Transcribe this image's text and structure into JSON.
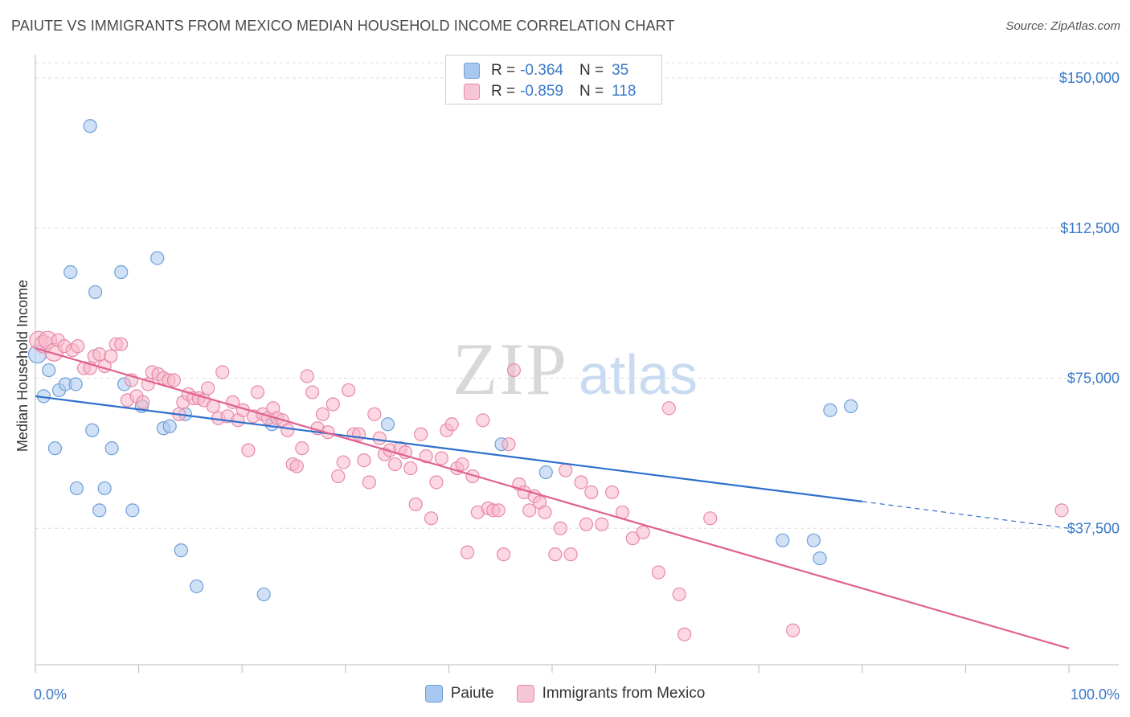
{
  "title": "PAIUTE VS IMMIGRANTS FROM MEXICO MEDIAN HOUSEHOLD INCOME CORRELATION CHART",
  "source": "Source: ZipAtlas.com",
  "watermark": {
    "zip": "ZIP",
    "atlas": "atlas"
  },
  "legend": {
    "rows": [
      {
        "r_label": "R =",
        "r_value": "-0.364",
        "n_label": "N =",
        "n_value": "35"
      },
      {
        "r_label": "R =",
        "r_value": "-0.859",
        "n_label": "N =",
        "n_value": "118"
      }
    ]
  },
  "colors": {
    "paiute_fill": "#a9c8f0",
    "paiute_stroke": "#6f9fd8",
    "paiute_line": "#2f6fcc",
    "mexico_fill": "#f7b8cb",
    "mexico_stroke": "#e889a8",
    "mexico_line": "#e0628e",
    "axis_label": "#3a78c8",
    "grid": "#dddddd"
  },
  "chart_data": {
    "type": "scatter",
    "ylabel": "Median Household Income",
    "xlim": [
      0,
      100
    ],
    "ylim": [
      0,
      155000
    ],
    "x_tick_labels": [
      "0.0%",
      "100.0%"
    ],
    "y_ticks": [
      {
        "value": 37500,
        "label": "$37,500"
      },
      {
        "value": 75000,
        "label": "$75,000"
      },
      {
        "value": 112500,
        "label": "$112,500"
      },
      {
        "value": 150000,
        "label": "$150,000"
      }
    ],
    "grid": true,
    "series": [
      {
        "name": "Paiute",
        "trend": {
          "x0": 0,
          "y0": 70500,
          "x1": 80,
          "y1": 44200,
          "dash_to_x": 100,
          "dash_to_y": 37500
        },
        "points": [
          [
            0.2,
            81000
          ],
          [
            0.8,
            70500
          ],
          [
            1.3,
            77000
          ],
          [
            1.9,
            57500
          ],
          [
            2.3,
            72000
          ],
          [
            2.9,
            73500
          ],
          [
            3.9,
            73500
          ],
          [
            3.4,
            101500
          ],
          [
            4.0,
            47500
          ],
          [
            5.3,
            138000
          ],
          [
            5.5,
            62000
          ],
          [
            5.8,
            96500
          ],
          [
            6.2,
            42000
          ],
          [
            6.7,
            47500
          ],
          [
            7.4,
            57500
          ],
          [
            8.3,
            101500
          ],
          [
            8.6,
            73500
          ],
          [
            9.4,
            42000
          ],
          [
            10.3,
            68000
          ],
          [
            11.8,
            105000
          ],
          [
            12.4,
            62500
          ],
          [
            13.0,
            63000
          ],
          [
            14.1,
            32000
          ],
          [
            14.5,
            66000
          ],
          [
            15.6,
            23000
          ],
          [
            22.1,
            21000
          ],
          [
            22.9,
            63500
          ],
          [
            34.1,
            63500
          ],
          [
            45.1,
            58500
          ],
          [
            49.4,
            51500
          ],
          [
            72.3,
            34500
          ],
          [
            75.3,
            34500
          ],
          [
            75.9,
            30000
          ],
          [
            76.9,
            67000
          ],
          [
            78.9,
            68000
          ]
        ]
      },
      {
        "name": "Immigrants from Mexico",
        "trend": {
          "x0": 0,
          "y0": 82500,
          "x1": 100,
          "y1": 7500
        },
        "points": [
          [
            0.3,
            84500
          ],
          [
            0.8,
            83500
          ],
          [
            1.2,
            84500
          ],
          [
            1.8,
            81500
          ],
          [
            2.2,
            84500
          ],
          [
            2.8,
            83000
          ],
          [
            3.6,
            82000
          ],
          [
            4.1,
            83000
          ],
          [
            4.7,
            77500
          ],
          [
            5.3,
            77500
          ],
          [
            5.7,
            80500
          ],
          [
            6.2,
            81000
          ],
          [
            6.7,
            78000
          ],
          [
            7.3,
            80500
          ],
          [
            7.8,
            83500
          ],
          [
            8.3,
            83500
          ],
          [
            8.9,
            69500
          ],
          [
            9.3,
            74500
          ],
          [
            9.8,
            70500
          ],
          [
            10.4,
            69000
          ],
          [
            10.9,
            73500
          ],
          [
            11.3,
            76500
          ],
          [
            11.9,
            76000
          ],
          [
            12.4,
            75000
          ],
          [
            12.9,
            74500
          ],
          [
            13.4,
            74500
          ],
          [
            13.9,
            66000
          ],
          [
            14.3,
            69000
          ],
          [
            14.8,
            71000
          ],
          [
            15.3,
            70000
          ],
          [
            15.8,
            70000
          ],
          [
            16.3,
            69500
          ],
          [
            16.7,
            72500
          ],
          [
            17.2,
            68000
          ],
          [
            17.7,
            65000
          ],
          [
            18.1,
            76500
          ],
          [
            18.6,
            65500
          ],
          [
            19.1,
            69000
          ],
          [
            19.6,
            64500
          ],
          [
            20.1,
            67000
          ],
          [
            20.6,
            57000
          ],
          [
            21.1,
            65500
          ],
          [
            21.5,
            71500
          ],
          [
            22.0,
            66000
          ],
          [
            22.5,
            65000
          ],
          [
            23.0,
            67500
          ],
          [
            23.4,
            65000
          ],
          [
            23.9,
            64500
          ],
          [
            24.4,
            62000
          ],
          [
            24.9,
            53500
          ],
          [
            25.3,
            53000
          ],
          [
            25.8,
            57500
          ],
          [
            26.3,
            75500
          ],
          [
            26.8,
            71500
          ],
          [
            27.3,
            62500
          ],
          [
            27.8,
            66000
          ],
          [
            28.3,
            61500
          ],
          [
            28.8,
            68500
          ],
          [
            29.3,
            50500
          ],
          [
            29.8,
            54000
          ],
          [
            30.3,
            72000
          ],
          [
            30.8,
            61000
          ],
          [
            31.3,
            61000
          ],
          [
            31.8,
            54500
          ],
          [
            32.3,
            49000
          ],
          [
            32.8,
            66000
          ],
          [
            33.3,
            60000
          ],
          [
            33.8,
            56000
          ],
          [
            34.3,
            57000
          ],
          [
            34.8,
            53500
          ],
          [
            35.3,
            57500
          ],
          [
            35.8,
            56500
          ],
          [
            36.3,
            52500
          ],
          [
            36.8,
            43500
          ],
          [
            37.3,
            61000
          ],
          [
            37.8,
            55500
          ],
          [
            38.3,
            40000
          ],
          [
            38.8,
            49000
          ],
          [
            39.3,
            55000
          ],
          [
            39.8,
            62000
          ],
          [
            40.3,
            63500
          ],
          [
            40.8,
            52500
          ],
          [
            41.3,
            53500
          ],
          [
            41.8,
            31500
          ],
          [
            42.3,
            50500
          ],
          [
            42.8,
            41500
          ],
          [
            43.3,
            64500
          ],
          [
            43.8,
            42500
          ],
          [
            44.3,
            42000
          ],
          [
            44.8,
            42000
          ],
          [
            45.3,
            31000
          ],
          [
            45.8,
            58500
          ],
          [
            46.3,
            77000
          ],
          [
            46.8,
            48500
          ],
          [
            47.3,
            46500
          ],
          [
            47.8,
            42000
          ],
          [
            48.3,
            45500
          ],
          [
            48.8,
            44000
          ],
          [
            49.3,
            41500
          ],
          [
            50.3,
            31000
          ],
          [
            50.8,
            37500
          ],
          [
            51.3,
            52000
          ],
          [
            51.8,
            31000
          ],
          [
            52.8,
            49000
          ],
          [
            53.3,
            38500
          ],
          [
            53.8,
            46500
          ],
          [
            54.8,
            38500
          ],
          [
            55.8,
            46500
          ],
          [
            56.8,
            41500
          ],
          [
            57.8,
            35000
          ],
          [
            58.8,
            36500
          ],
          [
            60.3,
            26500
          ],
          [
            61.3,
            67500
          ],
          [
            62.3,
            21000
          ],
          [
            62.8,
            11000
          ],
          [
            65.3,
            40000
          ],
          [
            73.3,
            12000
          ],
          [
            99.3,
            42000
          ]
        ]
      }
    ]
  }
}
